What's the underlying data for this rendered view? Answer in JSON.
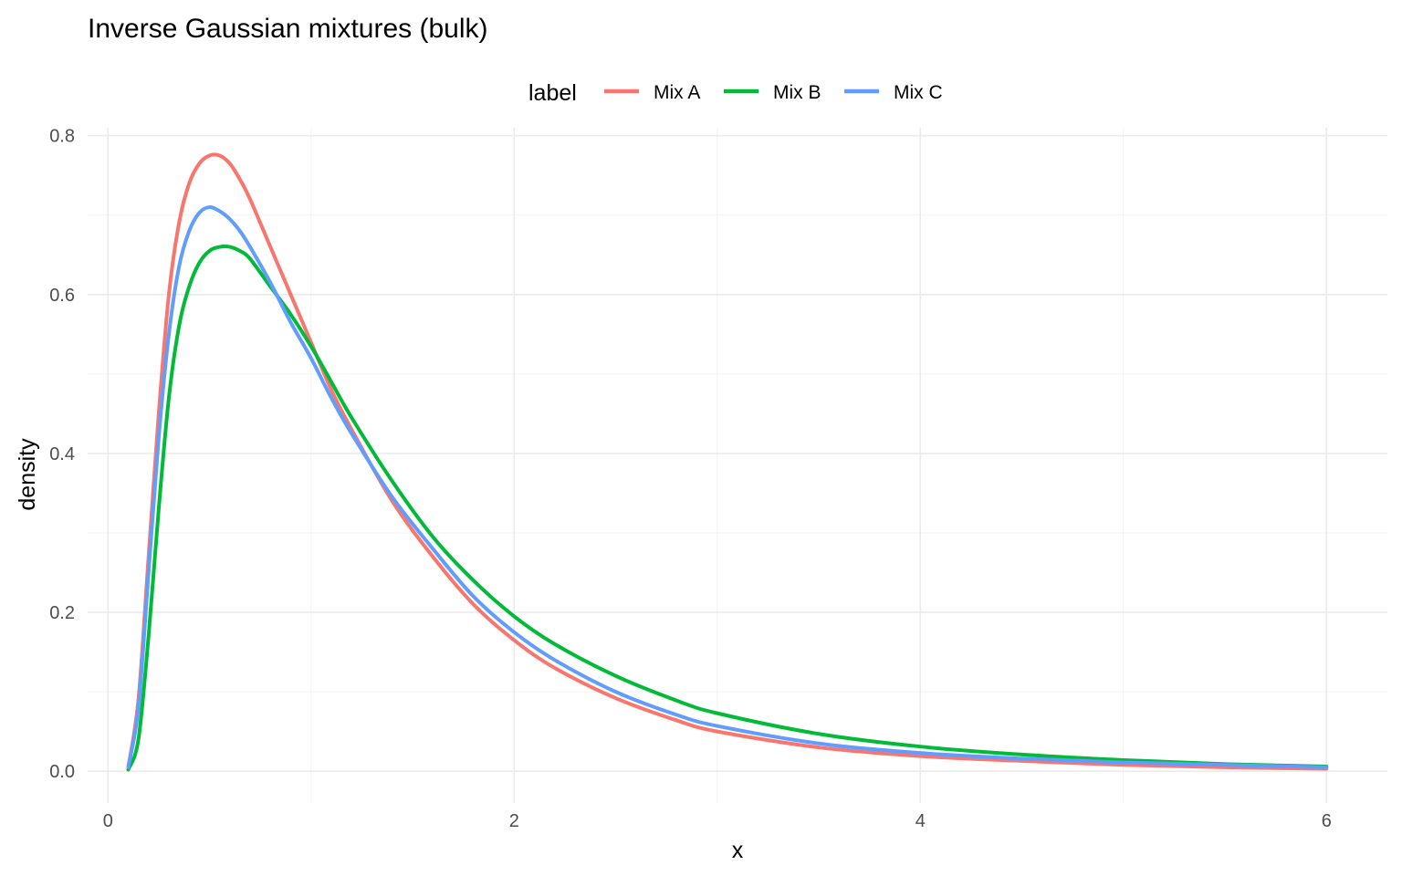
{
  "chart_data": {
    "type": "line",
    "title": "Inverse Gaussian mixtures (bulk)",
    "xlabel": "x",
    "ylabel": "density",
    "xlim": [
      -0.1,
      6.3
    ],
    "ylim": [
      -0.04,
      0.81
    ],
    "x_ticks": [
      0,
      2,
      4,
      6
    ],
    "y_ticks": [
      0.0,
      0.2,
      0.4,
      0.6,
      0.8
    ],
    "x_tick_labels": [
      "0",
      "2",
      "4",
      "6"
    ],
    "y_tick_labels": [
      "0.0",
      "0.2",
      "0.4",
      "0.6",
      "0.8"
    ],
    "grid": true,
    "legend_position": "top",
    "legend": {
      "title": "label",
      "entries": [
        "Mix A",
        "Mix B",
        "Mix C"
      ]
    },
    "series": [
      {
        "name": "Mix A",
        "color": "#F8766D",
        "x": [
          0.1,
          0.15,
          0.2,
          0.25,
          0.3,
          0.35,
          0.4,
          0.45,
          0.5,
          0.55,
          0.6,
          0.65,
          0.7,
          0.8,
          0.9,
          1.0,
          1.1,
          1.2,
          1.4,
          1.6,
          1.8,
          2.0,
          2.2,
          2.5,
          2.8,
          3.0,
          3.5,
          4.0,
          4.5,
          5.0,
          5.5,
          6.0
        ],
        "y": [
          0.005,
          0.09,
          0.27,
          0.45,
          0.6,
          0.69,
          0.74,
          0.765,
          0.775,
          0.775,
          0.765,
          0.745,
          0.72,
          0.66,
          0.6,
          0.54,
          0.48,
          0.43,
          0.34,
          0.27,
          0.21,
          0.165,
          0.13,
          0.092,
          0.064,
          0.05,
          0.03,
          0.019,
          0.013,
          0.008,
          0.005,
          0.003
        ]
      },
      {
        "name": "Mix B",
        "color": "#00BA38",
        "x": [
          0.1,
          0.15,
          0.2,
          0.25,
          0.3,
          0.35,
          0.4,
          0.45,
          0.5,
          0.55,
          0.6,
          0.65,
          0.7,
          0.8,
          0.9,
          1.0,
          1.1,
          1.2,
          1.4,
          1.6,
          1.8,
          2.0,
          2.2,
          2.5,
          2.8,
          3.0,
          3.5,
          4.0,
          4.5,
          5.0,
          5.5,
          6.0
        ],
        "y": [
          0.002,
          0.04,
          0.17,
          0.33,
          0.47,
          0.56,
          0.61,
          0.64,
          0.655,
          0.66,
          0.66,
          0.655,
          0.645,
          0.61,
          0.575,
          0.535,
          0.49,
          0.445,
          0.365,
          0.295,
          0.24,
          0.195,
          0.16,
          0.12,
          0.089,
          0.073,
          0.047,
          0.031,
          0.021,
          0.014,
          0.009,
          0.006
        ]
      },
      {
        "name": "Mix C",
        "color": "#619CFF",
        "x": [
          0.1,
          0.15,
          0.2,
          0.25,
          0.3,
          0.35,
          0.4,
          0.45,
          0.5,
          0.55,
          0.6,
          0.65,
          0.7,
          0.8,
          0.9,
          1.0,
          1.1,
          1.2,
          1.4,
          1.6,
          1.8,
          2.0,
          2.2,
          2.5,
          2.8,
          3.0,
          3.5,
          4.0,
          4.5,
          5.0,
          5.5,
          6.0
        ],
        "y": [
          0.005,
          0.08,
          0.25,
          0.42,
          0.55,
          0.635,
          0.68,
          0.703,
          0.71,
          0.705,
          0.695,
          0.68,
          0.66,
          0.615,
          0.565,
          0.52,
          0.47,
          0.425,
          0.345,
          0.28,
          0.22,
          0.175,
          0.14,
          0.1,
          0.071,
          0.057,
          0.035,
          0.023,
          0.016,
          0.011,
          0.008,
          0.005
        ]
      }
    ]
  }
}
